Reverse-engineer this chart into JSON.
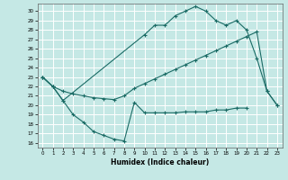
{
  "xlabel": "Humidex (Indice chaleur)",
  "bg_color": "#c5e8e5",
  "grid_color": "#b0ddd8",
  "line_color": "#1a6b65",
  "xlim": [
    -0.5,
    23.5
  ],
  "ylim": [
    15.5,
    30.8
  ],
  "yticks": [
    16,
    17,
    18,
    19,
    20,
    21,
    22,
    23,
    24,
    25,
    26,
    27,
    28,
    29,
    30
  ],
  "xticks": [
    0,
    1,
    2,
    3,
    4,
    5,
    6,
    7,
    8,
    9,
    10,
    11,
    12,
    13,
    14,
    15,
    16,
    17,
    18,
    19,
    20,
    21,
    22,
    23
  ],
  "series1_x": [
    0,
    1,
    2,
    3,
    4,
    5,
    6,
    7,
    8,
    9,
    10,
    11,
    12,
    13,
    14,
    15,
    16,
    17,
    18,
    19,
    20
  ],
  "series1_y": [
    23.0,
    22.0,
    20.5,
    19.0,
    18.2,
    17.2,
    16.8,
    16.4,
    16.2,
    20.3,
    19.2,
    19.2,
    19.2,
    19.2,
    19.3,
    19.3,
    19.3,
    19.5,
    19.5,
    19.7,
    19.7
  ],
  "series2_x": [
    0,
    1,
    2,
    3,
    4,
    5,
    6,
    7,
    8,
    9,
    10,
    11,
    12,
    13,
    14,
    15,
    16,
    17,
    18,
    19,
    20,
    21,
    22,
    23
  ],
  "series2_y": [
    23.0,
    22.0,
    21.5,
    21.2,
    21.0,
    20.8,
    20.7,
    20.6,
    21.0,
    21.8,
    22.3,
    22.8,
    23.3,
    23.8,
    24.3,
    24.8,
    25.3,
    25.8,
    26.3,
    26.8,
    27.3,
    27.8,
    21.5,
    20.0
  ],
  "series3_x": [
    0,
    1,
    2,
    10,
    11,
    12,
    13,
    14,
    15,
    16,
    17,
    18,
    19,
    20,
    21,
    22,
    23
  ],
  "series3_y": [
    23.0,
    22.0,
    20.5,
    27.5,
    28.5,
    28.5,
    29.5,
    30.0,
    30.5,
    30.0,
    29.0,
    28.5,
    29.0,
    28.0,
    25.0,
    21.5,
    20.0
  ]
}
